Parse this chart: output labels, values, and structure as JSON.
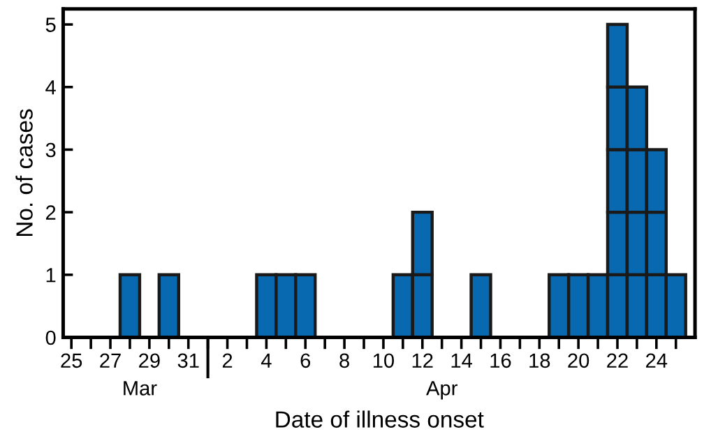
{
  "chart_data": {
    "type": "bar",
    "stacked": true,
    "xlabel": "Date of illness onset",
    "ylabel": "No. of cases",
    "categories": [
      "25",
      null,
      "27",
      null,
      "29",
      null,
      "31",
      null,
      "2",
      null,
      "4",
      null,
      "6",
      null,
      "8",
      null,
      "10",
      null,
      "12",
      null,
      "14",
      null,
      "16",
      null,
      "18",
      null,
      "20",
      null,
      "22",
      null,
      "24",
      null
    ],
    "series": [
      {
        "color": "#0868b0",
        "values": [
          null,
          null,
          null,
          1,
          null,
          1,
          null,
          null,
          null,
          null,
          1,
          1,
          1,
          null,
          null,
          null,
          null,
          1,
          1,
          null,
          null,
          1,
          null,
          null,
          null,
          1,
          1,
          1,
          1,
          1,
          1,
          1
        ]
      },
      {
        "color": "#0868b0",
        "values": [
          null,
          null,
          null,
          null,
          null,
          null,
          null,
          null,
          null,
          null,
          null,
          null,
          null,
          null,
          null,
          null,
          null,
          null,
          1,
          null,
          null,
          null,
          null,
          null,
          null,
          null,
          null,
          null,
          1,
          1,
          1,
          null
        ]
      },
      {
        "color": "#0868b0",
        "values": [
          null,
          null,
          null,
          null,
          null,
          null,
          null,
          null,
          null,
          null,
          null,
          null,
          null,
          null,
          null,
          null,
          null,
          null,
          null,
          null,
          null,
          null,
          null,
          null,
          null,
          null,
          null,
          null,
          1,
          1,
          1,
          null
        ]
      },
      {
        "color": "#0868b0",
        "values": [
          null,
          null,
          null,
          null,
          null,
          null,
          null,
          null,
          null,
          null,
          null,
          null,
          null,
          null,
          null,
          null,
          null,
          null,
          null,
          null,
          null,
          null,
          null,
          null,
          null,
          null,
          null,
          null,
          1,
          1,
          null,
          null
        ]
      },
      {
        "color": "#0868b0",
        "values": [
          null,
          null,
          null,
          null,
          null,
          null,
          null,
          null,
          null,
          null,
          null,
          null,
          null,
          null,
          null,
          null,
          null,
          null,
          null,
          null,
          null,
          null,
          null,
          null,
          null,
          null,
          null,
          null,
          1,
          null,
          null,
          null
        ]
      }
    ],
    "ylim": [
      0,
      5.25
    ],
    "yticks": [
      0,
      1,
      2,
      3,
      4,
      5
    ],
    "grid": false,
    "annotations": [
      "Mar",
      "Apr"
    ]
  }
}
